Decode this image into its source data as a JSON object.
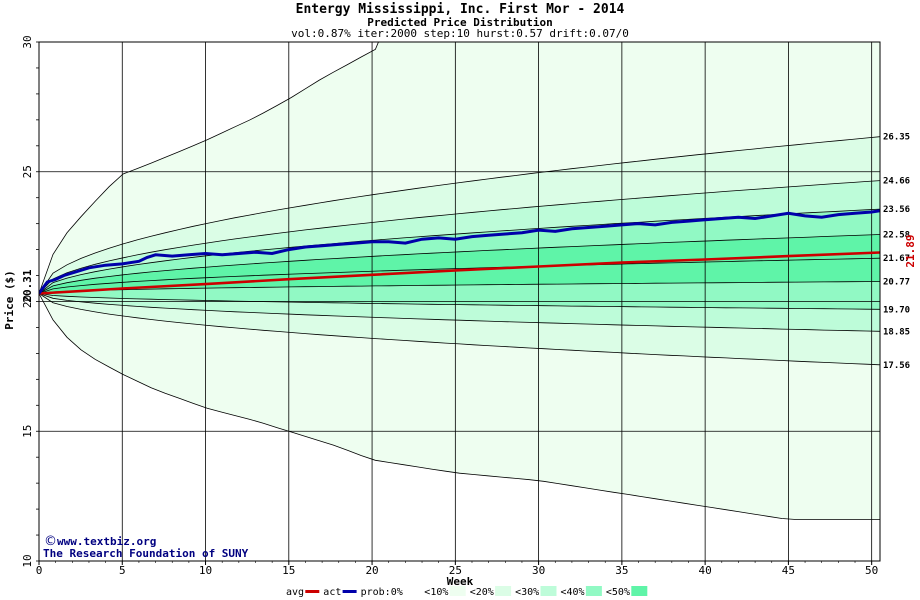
{
  "chart_data": {
    "type": "area",
    "title": "Entergy Mississippi, Inc. First Mor - 2014",
    "subtitle": "Predicted Price Distribution",
    "params": "vol:0.87% iter:2000 step:10 hurst:0.57 drift:0.07/0",
    "xlabel": "Week",
    "ylabel": "Price ($)",
    "xlim": [
      0,
      50.5
    ],
    "ylim": [
      10,
      30
    ],
    "x_ticks": [
      "0",
      "5",
      "10",
      "15",
      "20",
      "25",
      "30",
      "35",
      "40",
      "45",
      "50"
    ],
    "y_ticks": [
      "10",
      "15",
      "20",
      "25",
      "30"
    ],
    "start_price": "20.31",
    "end_price": "21.89",
    "percentile_curves": [
      {
        "end": 26.35,
        "label": "26.35"
      },
      {
        "end": 24.66,
        "label": "24.66"
      },
      {
        "end": 23.56,
        "label": "23.56"
      },
      {
        "end": 22.58,
        "label": "22.58"
      },
      {
        "end": 21.67,
        "label": "21.67"
      },
      {
        "end": 20.77,
        "label": "20.77"
      },
      {
        "end": 19.7,
        "label": "19.70"
      },
      {
        "end": 18.85,
        "label": "18.85"
      },
      {
        "end": 17.56,
        "label": "17.56"
      }
    ],
    "outer_upper": [
      [
        0,
        20.31
      ],
      [
        1,
        22.1
      ],
      [
        2,
        22.9
      ],
      [
        3,
        23.6
      ],
      [
        4,
        24.3
      ],
      [
        5,
        24.9
      ],
      [
        7,
        25.4
      ],
      [
        10,
        26.2
      ],
      [
        13,
        27.1
      ],
      [
        15,
        27.8
      ],
      [
        17,
        28.6
      ],
      [
        19,
        29.3
      ],
      [
        21,
        30.0
      ]
    ],
    "outer_lower": [
      [
        0,
        20.31
      ],
      [
        1,
        19.1
      ],
      [
        2,
        18.4
      ],
      [
        3,
        17.9
      ],
      [
        5,
        17.2
      ],
      [
        7,
        16.6
      ],
      [
        10,
        15.9
      ],
      [
        13,
        15.4
      ],
      [
        15,
        15.0
      ],
      [
        18,
        14.4
      ],
      [
        20,
        13.9
      ],
      [
        25,
        13.4
      ],
      [
        30,
        13.1
      ],
      [
        35,
        12.6
      ],
      [
        40,
        12.1
      ],
      [
        45,
        11.6
      ],
      [
        50.5,
        11.6
      ]
    ],
    "avg": [
      [
        0,
        20.31
      ],
      [
        3,
        20.42
      ],
      [
        5,
        20.5
      ],
      [
        10,
        20.67
      ],
      [
        15,
        20.86
      ],
      [
        20,
        21.03
      ],
      [
        25,
        21.2
      ],
      [
        30,
        21.35
      ],
      [
        35,
        21.5
      ],
      [
        40,
        21.62
      ],
      [
        45,
        21.75
      ],
      [
        50.5,
        21.89
      ]
    ],
    "act": [
      [
        0,
        20.31
      ],
      [
        0.5,
        20.75
      ],
      [
        1,
        20.85
      ],
      [
        1.5,
        21.0
      ],
      [
        2,
        21.1
      ],
      [
        3,
        21.3
      ],
      [
        4,
        21.4
      ],
      [
        5,
        21.45
      ],
      [
        6,
        21.55
      ],
      [
        6.5,
        21.7
      ],
      [
        7,
        21.8
      ],
      [
        8,
        21.75
      ],
      [
        9,
        21.8
      ],
      [
        10,
        21.85
      ],
      [
        11,
        21.8
      ],
      [
        12,
        21.85
      ],
      [
        13,
        21.9
      ],
      [
        14,
        21.85
      ],
      [
        15,
        22.0
      ],
      [
        16,
        22.1
      ],
      [
        17,
        22.15
      ],
      [
        18,
        22.2
      ],
      [
        19,
        22.25
      ],
      [
        20,
        22.3
      ],
      [
        21,
        22.3
      ],
      [
        22,
        22.25
      ],
      [
        23,
        22.4
      ],
      [
        24,
        22.45
      ],
      [
        25,
        22.4
      ],
      [
        26,
        22.5
      ],
      [
        27,
        22.55
      ],
      [
        28,
        22.6
      ],
      [
        29,
        22.65
      ],
      [
        30,
        22.75
      ],
      [
        31,
        22.7
      ],
      [
        32,
        22.8
      ],
      [
        33,
        22.85
      ],
      [
        34,
        22.9
      ],
      [
        35,
        22.95
      ],
      [
        36,
        23.0
      ],
      [
        37,
        22.95
      ],
      [
        38,
        23.05
      ],
      [
        39,
        23.1
      ],
      [
        40,
        23.15
      ],
      [
        41,
        23.2
      ],
      [
        42,
        23.25
      ],
      [
        43,
        23.2
      ],
      [
        44,
        23.3
      ],
      [
        45,
        23.4
      ],
      [
        46,
        23.3
      ],
      [
        47,
        23.25
      ],
      [
        48,
        23.35
      ],
      [
        49,
        23.4
      ],
      [
        50,
        23.45
      ],
      [
        50.5,
        23.5
      ]
    ],
    "legend": [
      {
        "label": "avg",
        "color": "#cc0000",
        "kind": "line"
      },
      {
        "label": "act",
        "color": "#0000aa",
        "kind": "line"
      },
      {
        "label": "prob:0%",
        "color": "#ffffff",
        "kind": "box"
      },
      {
        "label": "<10%",
        "color": "#eefef0",
        "kind": "box"
      },
      {
        "label": "<20%",
        "color": "#dbfde6",
        "kind": "box"
      },
      {
        "label": "<30%",
        "color": "#bdfcd9",
        "kind": "box"
      },
      {
        "label": "<40%",
        "color": "#91f9c4",
        "kind": "box"
      },
      {
        "label": "<50%",
        "color": "#5ff4a8",
        "kind": "box"
      }
    ],
    "grid": true
  },
  "watermark": {
    "line1": "www.textbiz.org",
    "line2": "The Research Foundation of SUNY"
  }
}
